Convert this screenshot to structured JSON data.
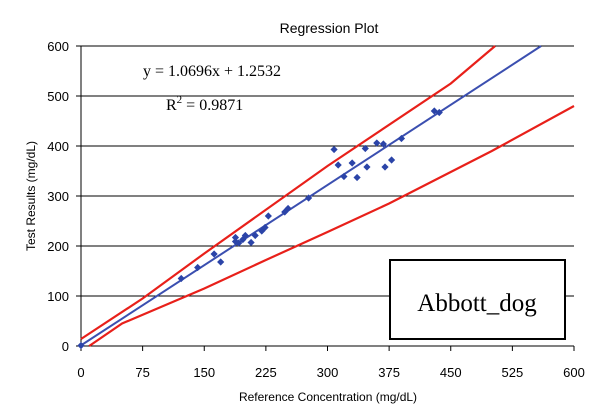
{
  "chart_data": {
    "type": "scatter",
    "title": "Regression Plot",
    "xlabel": "Reference Concentration (mg/dL)",
    "ylabel": "Test Results (mg/dL)",
    "xlim": [
      0,
      600
    ],
    "ylim": [
      0,
      600
    ],
    "x_ticks": [
      "0",
      "75",
      "150",
      "225",
      "300",
      "375",
      "450",
      "525",
      "600"
    ],
    "y_ticks": [
      "0",
      "100",
      "200",
      "300",
      "400",
      "500",
      "600"
    ],
    "grid": "horizontal",
    "equation": "y = 1.0696x + 1.2532",
    "r2_prefix": "R",
    "r2_exp": "2",
    "r2_value": " = 0.9871",
    "annotation_box": "Abbott_dog",
    "colors": {
      "points": "#2b44a8",
      "fit_line": "#3b4fb0",
      "limit_lines": "#e8201a"
    },
    "series": [
      {
        "kind": "points",
        "x": [
          0,
          122,
          142,
          162,
          170,
          188,
          188,
          192,
          197,
          200,
          207,
          212,
          220,
          224,
          228,
          248,
          252,
          277,
          308,
          313,
          320,
          330,
          336,
          346,
          348,
          360,
          368,
          370,
          378,
          390,
          430,
          436
        ],
        "y": [
          1,
          135,
          157,
          184,
          168,
          217,
          209,
          206,
          213,
          221,
          207,
          221,
          230,
          237,
          260,
          268,
          275,
          296,
          393,
          362,
          339,
          366,
          337,
          395,
          358,
          406,
          404,
          358,
          372,
          415,
          470,
          467
        ]
      },
      {
        "kind": "fit_line",
        "x": [
          0,
          560
        ],
        "y": [
          1.25,
          600
        ]
      },
      {
        "kind": "upper_limit",
        "x": [
          0,
          75,
          150,
          300,
          450,
          504
        ],
        "y": [
          14,
          95,
          185,
          360,
          525,
          600
        ]
      },
      {
        "kind": "lower_limit",
        "x": [
          10,
          50,
          150,
          225,
          300,
          375,
          500,
          600
        ],
        "y": [
          0,
          45,
          115,
          172,
          228,
          285,
          390,
          480
        ]
      }
    ]
  }
}
